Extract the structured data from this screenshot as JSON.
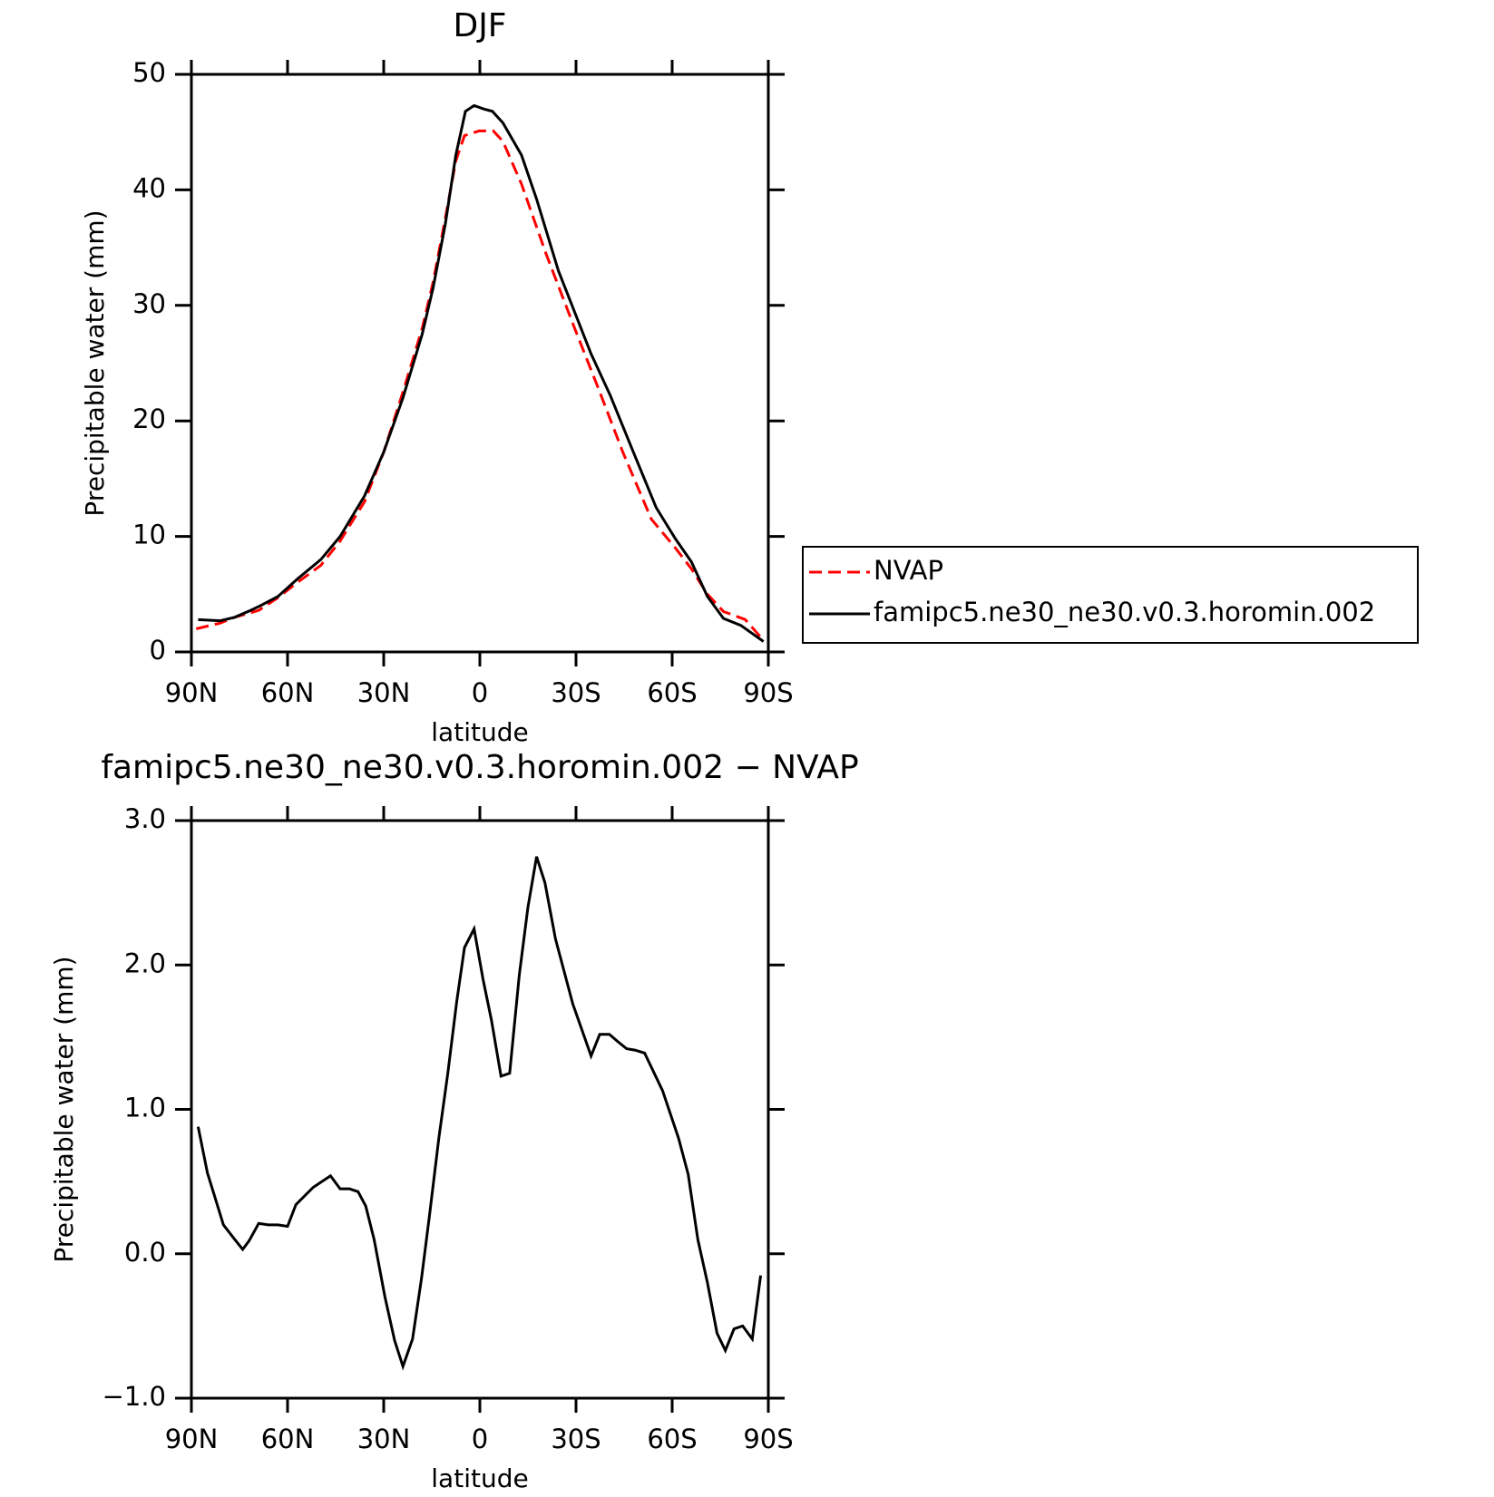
{
  "chart_data": [
    {
      "type": "line",
      "title": "DJF",
      "xlabel": "latitude",
      "ylabel": "Precipitable water (mm)",
      "xlim": [
        90,
        -90
      ],
      "xticks": [
        {
          "value": 90,
          "label": "90N"
        },
        {
          "value": 60,
          "label": "60N"
        },
        {
          "value": 30,
          "label": "30N"
        },
        0,
        {
          "value": -30,
          "label": "30S"
        },
        {
          "value": -60,
          "label": "60S"
        },
        {
          "value": -90,
          "label": "90S"
        }
      ],
      "ylim": [
        0,
        50
      ],
      "yticks": [
        0,
        10,
        20,
        30,
        40,
        50
      ],
      "legend": "right",
      "series": [
        {
          "name": "NVAP",
          "color": "#ff0000",
          "style": "dashed",
          "x": [
            88.5,
            81,
            76.5,
            69,
            63,
            57,
            49.6,
            43.6,
            36,
            30,
            24,
            18,
            14.6,
            10.8,
            7.5,
            4.8,
            0.3,
            -4.2,
            -7.2,
            -13,
            -20.6,
            -29.6,
            -37,
            -44.6,
            -53.5,
            -61,
            -66,
            -71,
            -76,
            -82.8,
            -88.5
          ],
          "values": [
            2.0,
            2.5,
            3.0,
            3.6,
            4.7,
            6.0,
            7.5,
            9.6,
            13.0,
            17.3,
            22.5,
            28.0,
            32.0,
            37.5,
            42.5,
            44.7,
            45.1,
            45.1,
            44.2,
            40.5,
            34.5,
            28.0,
            22.8,
            17.3,
            11.5,
            9.0,
            7.2,
            5.0,
            3.5,
            2.8,
            1.0
          ]
        },
        {
          "name": "famipc5.ne30_ne30.v0.3.horomin.002",
          "color": "#000000",
          "style": "solid",
          "x": [
            87.9,
            81,
            76.5,
            71.5,
            68.5,
            63,
            57,
            49.6,
            43.6,
            36,
            30,
            24,
            18,
            14.6,
            10.8,
            7.5,
            4.5,
            1.8,
            -1.2,
            -3.9,
            -7.2,
            -13,
            -17.7,
            -24.5,
            -34.7,
            -40.7,
            -47.6,
            -55,
            -61,
            -66,
            -71,
            -76,
            -81.4,
            -88.5
          ],
          "values": [
            2.8,
            2.7,
            3.0,
            3.6,
            4.0,
            4.8,
            6.3,
            8.0,
            10.0,
            13.5,
            17.3,
            22.0,
            27.5,
            31.5,
            37.0,
            43.0,
            46.8,
            47.3,
            47.0,
            46.8,
            45.8,
            43.0,
            39.2,
            33.0,
            25.8,
            22.2,
            17.5,
            12.5,
            9.8,
            7.8,
            4.8,
            2.9,
            2.3,
            0.9
          ]
        }
      ]
    },
    {
      "type": "line",
      "title": "famipc5.ne30_ne30.v0.3.horomin.002 − NVAP",
      "xlabel": "latitude",
      "ylabel": "Precipitable water (mm)",
      "xlim": [
        90,
        -90
      ],
      "xticks": [
        {
          "value": 90,
          "label": "90N"
        },
        {
          "value": 60,
          "label": "60N"
        },
        {
          "value": 30,
          "label": "30N"
        },
        0,
        {
          "value": -30,
          "label": "30S"
        },
        {
          "value": -60,
          "label": "60S"
        },
        {
          "value": -90,
          "label": "90S"
        }
      ],
      "ylim": [
        -1,
        3
      ],
      "yticks": [
        {
          "value": -1,
          "label": "−1.0"
        },
        {
          "value": 0,
          "label": "0.0"
        },
        {
          "value": 1,
          "label": "1.0"
        },
        {
          "value": 2,
          "label": "2.0"
        },
        {
          "value": 3,
          "label": "3.0"
        }
      ],
      "series": [
        {
          "color": "#000000",
          "style": "solid",
          "x": [
            87.9,
            85,
            82.5,
            80,
            76.5,
            74,
            72,
            69,
            66,
            63,
            60,
            57.4,
            52,
            46.6,
            43.6,
            40.7,
            38,
            35.6,
            33,
            29.6,
            26.6,
            24,
            21,
            18.2,
            15.8,
            12.8,
            10,
            7.2,
            4.8,
            1.8,
            -1,
            -3.6,
            -6.6,
            -9.3,
            -12.3,
            -15,
            -17.7,
            -20.3,
            -23.6,
            -29,
            -34.7,
            -37.4,
            -40.4,
            -43,
            -45.8,
            -48.5,
            -51.4,
            -57,
            -62,
            -65,
            -68,
            -71,
            -74,
            -76.6,
            -79.3,
            -82,
            -85,
            -87.6
          ],
          "values": [
            0.88,
            0.56,
            0.38,
            0.2,
            0.1,
            0.03,
            0.09,
            0.21,
            0.2,
            0.2,
            0.19,
            0.34,
            0.46,
            0.54,
            0.45,
            0.45,
            0.43,
            0.33,
            0.1,
            -0.3,
            -0.6,
            -0.78,
            -0.59,
            -0.17,
            0.25,
            0.8,
            1.25,
            1.75,
            2.12,
            2.25,
            1.9,
            1.62,
            1.23,
            1.25,
            1.93,
            2.4,
            2.75,
            2.57,
            2.18,
            1.73,
            1.37,
            1.52,
            1.52,
            1.47,
            1.42,
            1.41,
            1.39,
            1.13,
            0.8,
            0.55,
            0.1,
            -0.2,
            -0.55,
            -0.67,
            -0.52,
            -0.5,
            -0.59,
            -0.15
          ]
        }
      ]
    }
  ]
}
